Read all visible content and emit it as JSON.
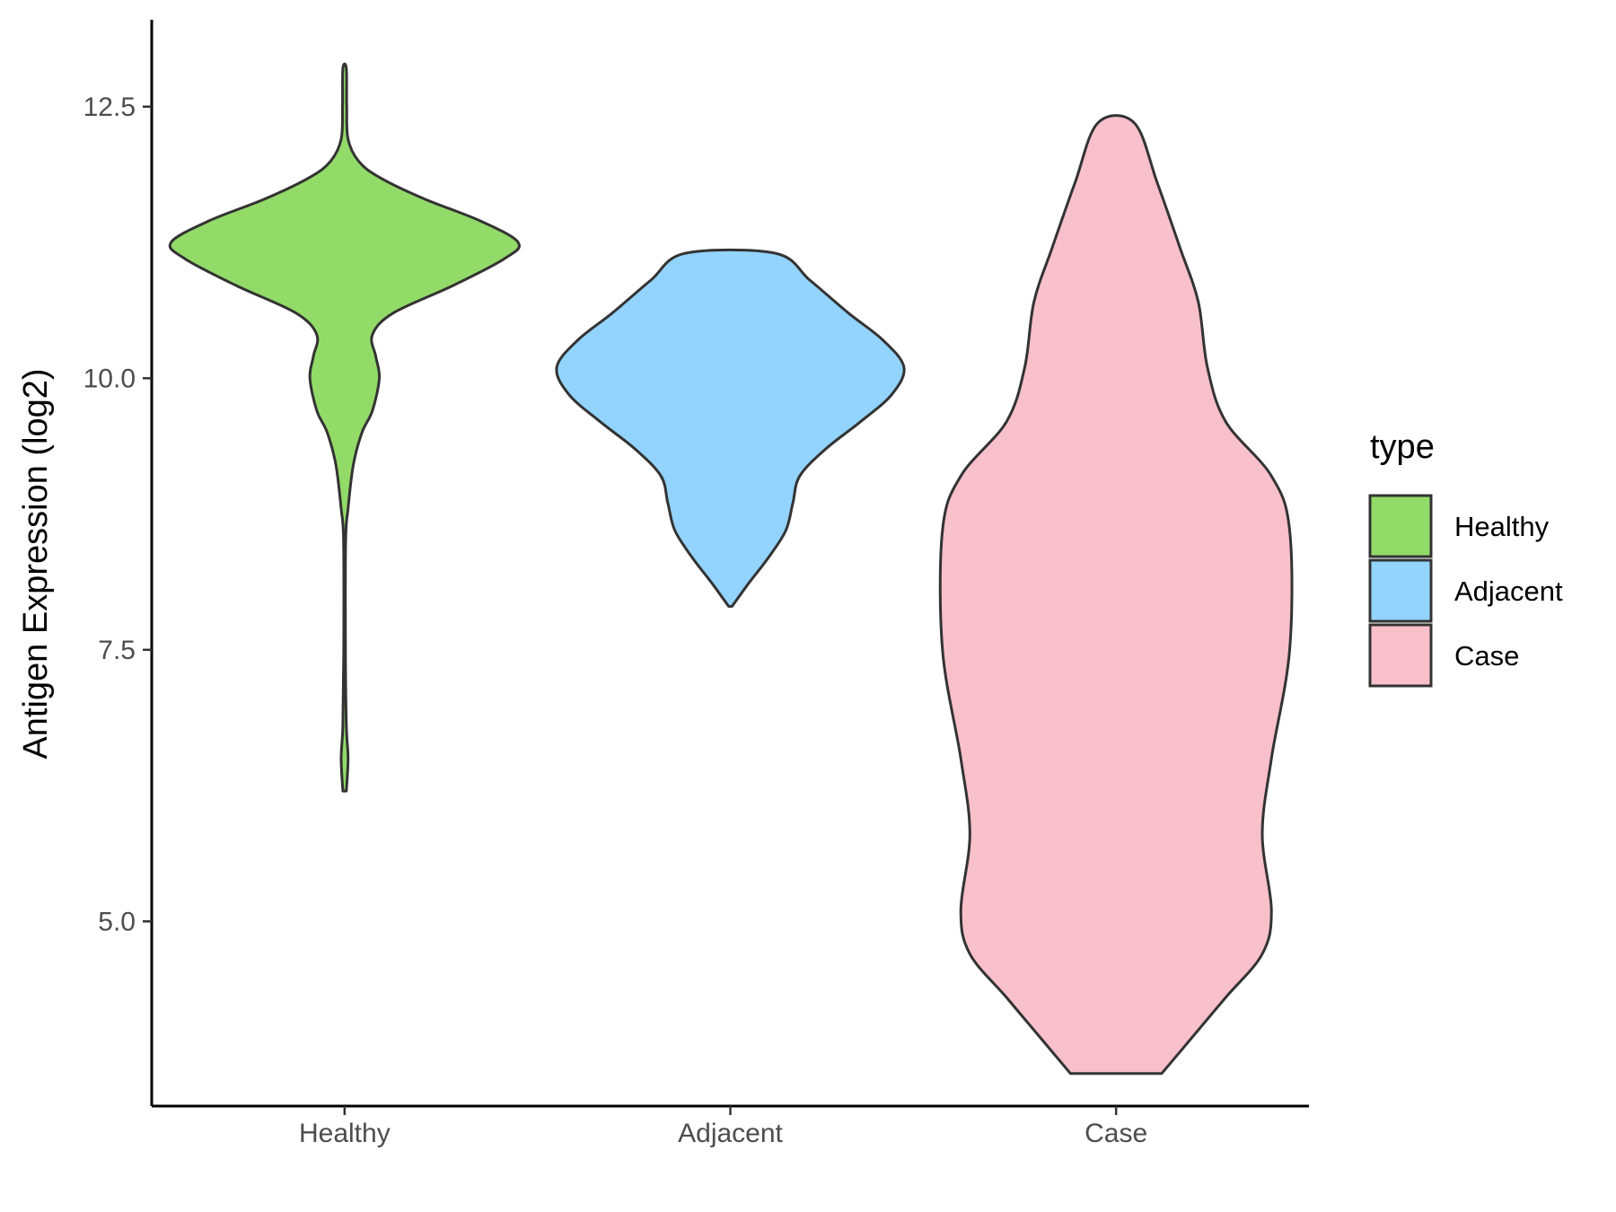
{
  "chart_data": {
    "type": "violin",
    "ylabel": "Antigen Expression (log2)",
    "xlabel": "",
    "ylim": [
      3.3,
      13.3
    ],
    "yticks": [
      5.0,
      7.5,
      10.0,
      12.5
    ],
    "ytick_labels": [
      "5.0",
      "7.5",
      "10.0",
      "12.5"
    ],
    "categories": [
      "Healthy",
      "Adjacent",
      "Case"
    ],
    "grid": false,
    "legend": {
      "title": "type",
      "position": "right",
      "entries": [
        "Healthy",
        "Adjacent",
        "Case"
      ]
    },
    "series": [
      {
        "name": "Healthy",
        "color": "#93DB69",
        "min": 6.2,
        "max": 12.85,
        "density_profile": [
          [
            6.2,
            0.01
          ],
          [
            6.5,
            0.02
          ],
          [
            6.8,
            0.01
          ],
          [
            7.5,
            0.005
          ],
          [
            8.5,
            0.006
          ],
          [
            8.8,
            0.02
          ],
          [
            9.2,
            0.05
          ],
          [
            9.5,
            0.1
          ],
          [
            9.7,
            0.16
          ],
          [
            10.0,
            0.2
          ],
          [
            10.2,
            0.18
          ],
          [
            10.4,
            0.16
          ],
          [
            10.6,
            0.28
          ],
          [
            10.85,
            0.62
          ],
          [
            11.1,
            0.92
          ],
          [
            11.25,
            1.0
          ],
          [
            11.45,
            0.78
          ],
          [
            11.65,
            0.46
          ],
          [
            11.85,
            0.2
          ],
          [
            12.0,
            0.08
          ],
          [
            12.2,
            0.02
          ],
          [
            12.5,
            0.012
          ],
          [
            12.85,
            0.01
          ]
        ]
      },
      {
        "name": "Adjacent",
        "color": "#93D4FF",
        "min": 7.9,
        "max": 11.15,
        "density_profile": [
          [
            7.9,
            0.01
          ],
          [
            8.1,
            0.1
          ],
          [
            8.35,
            0.22
          ],
          [
            8.6,
            0.32
          ],
          [
            8.85,
            0.36
          ],
          [
            9.1,
            0.4
          ],
          [
            9.35,
            0.55
          ],
          [
            9.6,
            0.75
          ],
          [
            9.85,
            0.93
          ],
          [
            10.1,
            1.0
          ],
          [
            10.35,
            0.88
          ],
          [
            10.6,
            0.68
          ],
          [
            10.9,
            0.46
          ],
          [
            11.15,
            0.26
          ]
        ]
      },
      {
        "name": "Case",
        "color": "#F8C0CB",
        "min": 3.6,
        "max": 12.35,
        "density_profile": [
          [
            3.6,
            0.05
          ],
          [
            3.9,
            0.08
          ],
          [
            4.3,
            0.12
          ],
          [
            4.7,
            0.16
          ],
          [
            5.1,
            0.17
          ],
          [
            5.8,
            0.16
          ],
          [
            6.5,
            0.17
          ],
          [
            7.5,
            0.19
          ],
          [
            8.6,
            0.19
          ],
          [
            9.1,
            0.17
          ],
          [
            9.6,
            0.12
          ],
          [
            10.1,
            0.1
          ],
          [
            10.7,
            0.09
          ],
          [
            11.2,
            0.07
          ],
          [
            11.8,
            0.045
          ],
          [
            12.35,
            0.02
          ]
        ]
      }
    ]
  }
}
